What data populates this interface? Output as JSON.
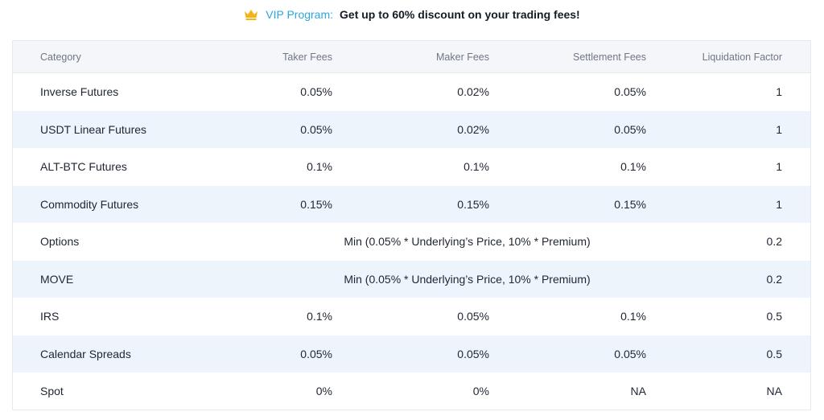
{
  "banner": {
    "vip_label": "VIP Program:",
    "message": "Get up to 60% discount on your trading fees!",
    "icon": "crown-icon",
    "accent_color": "#2ba8e0",
    "crown_color": "#f2b418"
  },
  "table": {
    "headers": {
      "category": "Category",
      "taker": "Taker Fees",
      "maker": "Maker Fees",
      "settlement": "Settlement Fees",
      "liquidation": "Liquidation Factor"
    },
    "rows": [
      {
        "category": "Inverse Futures",
        "taker": "0.05%",
        "maker": "0.02%",
        "settlement": "0.05%",
        "liquidation": "1"
      },
      {
        "category": "USDT Linear Futures",
        "taker": "0.05%",
        "maker": "0.02%",
        "settlement": "0.05%",
        "liquidation": "1"
      },
      {
        "category": "ALT-BTC Futures",
        "taker": "0.1%",
        "maker": "0.1%",
        "settlement": "0.1%",
        "liquidation": "1"
      },
      {
        "category": "Commodity Futures",
        "taker": "0.15%",
        "maker": "0.15%",
        "settlement": "0.15%",
        "liquidation": "1"
      },
      {
        "category": "Options",
        "combined": "Min (0.05% * Underlying’s Price, 10% * Premium)",
        "liquidation": "0.2"
      },
      {
        "category": "MOVE",
        "combined": "Min (0.05% * Underlying’s Price, 10% * Premium)",
        "liquidation": "0.2"
      },
      {
        "category": "IRS",
        "taker": "0.1%",
        "maker": "0.05%",
        "settlement": "0.1%",
        "liquidation": "0.5"
      },
      {
        "category": "Calendar Spreads",
        "taker": "0.05%",
        "maker": "0.05%",
        "settlement": "0.05%",
        "liquidation": "0.5"
      },
      {
        "category": "Spot",
        "taker": "0%",
        "maker": "0%",
        "settlement": "NA",
        "liquidation": "NA"
      }
    ]
  }
}
